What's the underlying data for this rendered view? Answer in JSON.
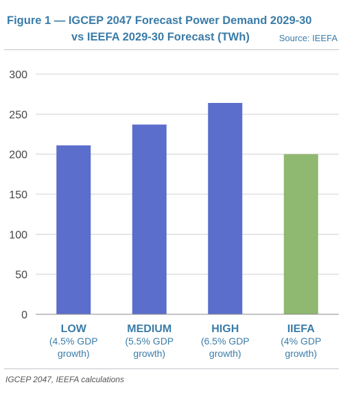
{
  "header": {
    "title_line1": "Figure 1 — IGCEP 2047 Forecast Power Demand 2029-30",
    "title_line2": "vs IEEFA 2029-30 Forecast (TWh)",
    "source": "Source: IEEFA"
  },
  "footnote": "IGCEP 2047, IEEFA calculations",
  "chart_data": {
    "type": "bar",
    "categories": [
      {
        "name": "LOW",
        "note_lines": [
          "(4.5% GDP",
          "growth)"
        ]
      },
      {
        "name": "MEDIUM",
        "note_lines": [
          "(5.5% GDP",
          "growth)"
        ]
      },
      {
        "name": "HIGH",
        "note_lines": [
          "(6.5% GDP",
          "growth)"
        ]
      },
      {
        "name": "IIEFA",
        "note_lines": [
          "(4% GDP",
          "growth)"
        ]
      }
    ],
    "values": [
      211,
      237,
      264,
      200
    ],
    "bar_colors": [
      "#5b6ecb",
      "#5b6ecb",
      "#5b6ecb",
      "#8fb870"
    ],
    "ylim": [
      0,
      300
    ],
    "yticks": [
      0,
      50,
      100,
      150,
      200,
      250,
      300
    ],
    "grid": true,
    "legend": "none"
  }
}
